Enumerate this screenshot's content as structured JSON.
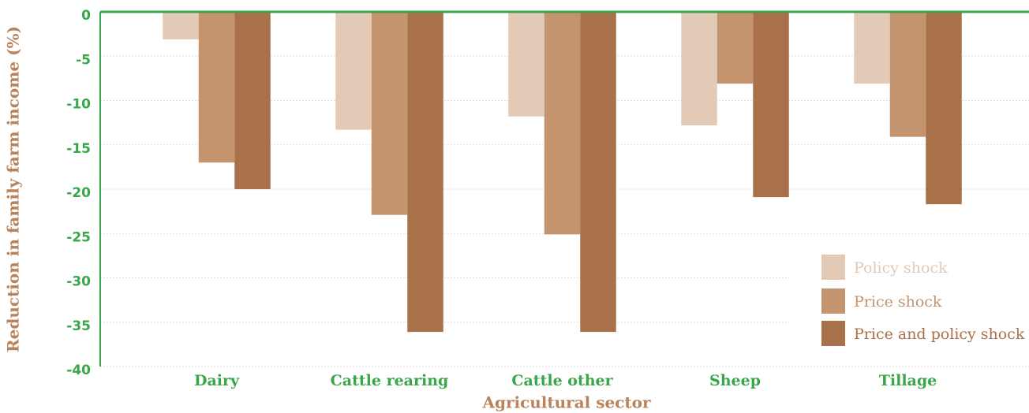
{
  "chart_data": {
    "type": "bar",
    "x_label": "Agricultural sector",
    "y_label": "Reduction in family farm income (%)",
    "categories": [
      "Dairy",
      "Cattle rearing",
      "Cattle other",
      "Sheep",
      "Tillage"
    ],
    "series": [
      {
        "name": "Policy shock",
        "color": "#e3cab7",
        "values": [
          -3.1,
          -13.3,
          -11.8,
          -12.8,
          -8.1
        ]
      },
      {
        "name": "Price shock",
        "color": "#c3946e",
        "values": [
          -17.0,
          -22.9,
          -25.1,
          -8.1,
          -14.1
        ]
      },
      {
        "name": "Price and policy shock",
        "color": "#a9714a",
        "values": [
          -20.0,
          -36.1,
          -36.1,
          -20.9,
          -21.7
        ]
      }
    ],
    "ylim": [
      -40,
      0
    ],
    "yticks": [
      0,
      -5,
      -10,
      -15,
      -20,
      -25,
      -30,
      -35,
      -40
    ],
    "grid": true,
    "legend": "lower right"
  }
}
